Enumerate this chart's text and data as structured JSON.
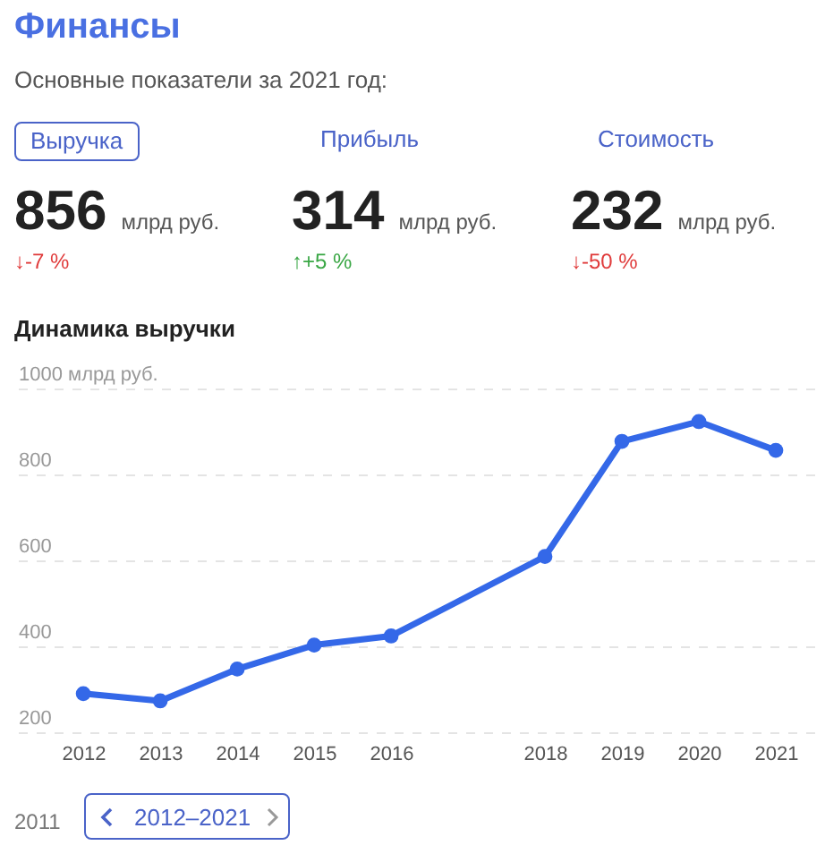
{
  "chart_data": [
    {
      "type": "other",
      "title": "Финансы",
      "subtitle": "Основные показатели за 2021 год:",
      "annotations": [
        "Выручка",
        "Прибыль",
        "Стоимость",
        "856",
        "млрд руб.",
        "↓-7 %",
        "314",
        "млрд руб.",
        "↑+5 %",
        "232",
        "млрд руб.",
        "↓-50 %"
      ]
    },
    {
      "type": "line",
      "title": "Динамика выручки",
      "x": [
        2012,
        2013,
        2014,
        2015,
        2016,
        2018,
        2019,
        2020,
        2021
      ],
      "series": [
        {
          "color": "#3468e8",
          "values": [
            290,
            273,
            347,
            403,
            424,
            609,
            877,
            923,
            856
          ]
        }
      ],
      "xlim": [
        2011.15,
        2021.5
      ],
      "xticks": [
        2012,
        2013,
        2014,
        2015,
        2016,
        2018,
        2019,
        2020,
        2021
      ],
      "ylim": [
        200,
        1000
      ],
      "yticks": [
        200,
        400,
        600,
        800,
        {
          "value": 1000,
          "label": "1000 млрд руб."
        }
      ],
      "grid": "y",
      "marker": "circle",
      "annotations": [
        "2011",
        "2012–2021"
      ]
    }
  ]
}
